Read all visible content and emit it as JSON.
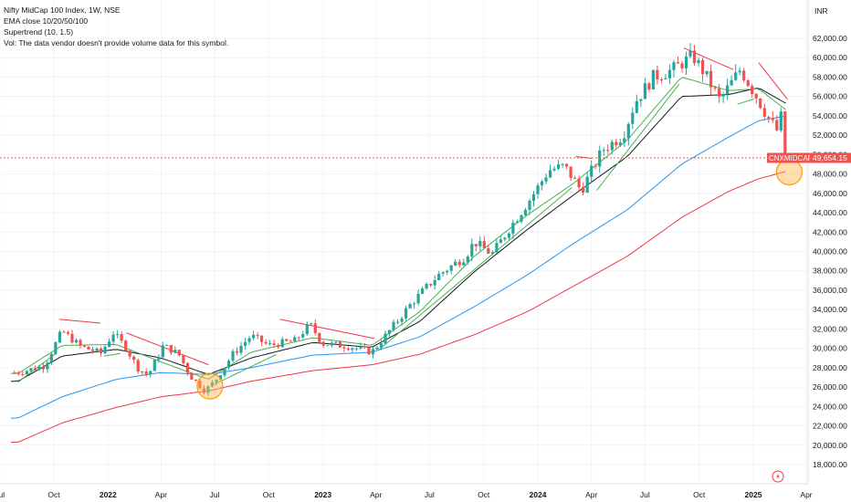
{
  "legend": {
    "title": "Nifty MidCap 100 Index, 1W, NSE",
    "ema": "EMA close 10/20/50/100",
    "supertrend": "Supertrend (10, 1.5)",
    "vol": "Vol: The data vendor doesn't provide volume data for this symbol."
  },
  "currency": "INR",
  "price_tag": {
    "symbol": "CNXMIDCAP",
    "value": "49,654.15"
  },
  "colors": {
    "up": "#26a69a",
    "down": "#ef5350",
    "ema10": "#4caf50",
    "ema20": "#131722",
    "ema50": "#2196f3",
    "ema100": "#f23645",
    "supertrend_down": "#f23645",
    "supertrend_up": "#4caf50",
    "highlight": "#ffb74d",
    "grid": "#f0f3fa"
  },
  "icons": {
    "tv_logo": "lightning-icon"
  },
  "chart_data": {
    "type": "candlestick",
    "ylim": [
      17000,
      63500
    ],
    "yticks": [
      18000,
      20000,
      22000,
      24000,
      26000,
      28000,
      30000,
      32000,
      34000,
      36000,
      38000,
      40000,
      42000,
      44000,
      46000,
      48000,
      50000,
      52000,
      54000,
      56000,
      58000,
      60000,
      62000
    ],
    "ytick_labels": [
      "18,000.00",
      "20,000.00",
      "22,000.00",
      "24,000.00",
      "26,000.00",
      "28,000.00",
      "30,000.00",
      "32,000.00",
      "34,000.00",
      "36,000.00",
      "38,000.00",
      "40,000.00",
      "42,000.00",
      "44,000.00",
      "46,000.00",
      "48,000.00",
      "50,000.00",
      "52,000.00",
      "54,000.00",
      "56,000.00",
      "58,000.00",
      "60,000.00",
      "62,000.00"
    ],
    "xticks": [
      {
        "label": "Jul",
        "date": "2021-07-01",
        "bold": false
      },
      {
        "label": "Oct",
        "date": "2021-10-01",
        "bold": false
      },
      {
        "label": "2022",
        "date": "2022-01-01",
        "bold": true
      },
      {
        "label": "Apr",
        "date": "2022-04-01",
        "bold": false
      },
      {
        "label": "Jul",
        "date": "2022-07-01",
        "bold": false
      },
      {
        "label": "Oct",
        "date": "2022-10-01",
        "bold": false
      },
      {
        "label": "2023",
        "date": "2023-01-01",
        "bold": true
      },
      {
        "label": "Apr",
        "date": "2023-04-01",
        "bold": false
      },
      {
        "label": "Jul",
        "date": "2023-07-01",
        "bold": false
      },
      {
        "label": "Oct",
        "date": "2023-10-01",
        "bold": false
      },
      {
        "label": "2024",
        "date": "2024-01-01",
        "bold": true
      },
      {
        "label": "Apr",
        "date": "2024-04-01",
        "bold": false
      },
      {
        "label": "Jul",
        "date": "2024-07-01",
        "bold": false
      },
      {
        "label": "Oct",
        "date": "2024-10-01",
        "bold": false
      },
      {
        "label": "2025",
        "date": "2025-01-01",
        "bold": true
      },
      {
        "label": "Apr",
        "date": "2025-04-01",
        "bold": false
      }
    ],
    "last_price": 49654.15,
    "close_path": [
      [
        "2021-08-01",
        27500
      ],
      [
        "2021-09-15",
        28200
      ],
      [
        "2021-10-15",
        31800
      ],
      [
        "2021-11-15",
        30200
      ],
      [
        "2021-12-20",
        29500
      ],
      [
        "2022-01-10",
        31600
      ],
      [
        "2022-01-31",
        30100
      ],
      [
        "2022-02-20",
        28000
      ],
      [
        "2022-03-10",
        27200
      ],
      [
        "2022-04-05",
        30300
      ],
      [
        "2022-05-01",
        29400
      ],
      [
        "2022-05-20",
        27200
      ],
      [
        "2022-06-15",
        25600
      ],
      [
        "2022-07-01",
        26600
      ],
      [
        "2022-08-01",
        29400
      ],
      [
        "2022-09-01",
        31300
      ],
      [
        "2022-10-01",
        30300
      ],
      [
        "2022-11-15",
        30800
      ],
      [
        "2022-12-10",
        32500
      ],
      [
        "2022-12-31",
        30500
      ],
      [
        "2023-02-15",
        30200
      ],
      [
        "2023-03-25",
        29600
      ],
      [
        "2023-04-20",
        31500
      ],
      [
        "2023-06-01",
        34700
      ],
      [
        "2023-07-15",
        37500
      ],
      [
        "2023-08-31",
        39500
      ],
      [
        "2023-09-15",
        41000
      ],
      [
        "2023-10-15",
        39700
      ],
      [
        "2023-11-15",
        42500
      ],
      [
        "2023-12-20",
        45500
      ],
      [
        "2024-01-20",
        48400
      ],
      [
        "2024-02-15",
        48800
      ],
      [
        "2024-03-15",
        46300
      ],
      [
        "2024-04-20",
        50500
      ],
      [
        "2024-05-25",
        52000
      ],
      [
        "2024-06-15",
        55500
      ],
      [
        "2024-07-15",
        58000
      ],
      [
        "2024-08-15",
        58700
      ],
      [
        "2024-09-20",
        60200
      ],
      [
        "2024-10-10",
        58400
      ],
      [
        "2024-11-05",
        55600
      ],
      [
        "2024-12-10",
        58800
      ],
      [
        "2025-01-10",
        55600
      ],
      [
        "2025-01-25",
        53900
      ],
      [
        "2025-02-10",
        52500
      ],
      [
        "2025-02-18",
        54100
      ],
      [
        "2025-02-28",
        49654
      ]
    ],
    "ema_anchors": {
      "ema10": [
        [
          "2021-08-01",
          27400
        ],
        [
          "2021-10-15",
          30300
        ],
        [
          "2022-01-15",
          30400
        ],
        [
          "2022-04-01",
          28600
        ],
        [
          "2022-06-20",
          26800
        ],
        [
          "2022-09-01",
          29600
        ],
        [
          "2022-12-15",
          31100
        ],
        [
          "2023-03-25",
          30300
        ],
        [
          "2023-06-15",
          33800
        ],
        [
          "2023-09-15",
          39500
        ],
        [
          "2023-12-15",
          43800
        ],
        [
          "2024-03-01",
          47000
        ],
        [
          "2024-06-01",
          51500
        ],
        [
          "2024-09-01",
          58000
        ],
        [
          "2024-11-20",
          56600
        ],
        [
          "2025-01-10",
          56800
        ],
        [
          "2025-02-28",
          54500
        ]
      ],
      "ema20": [
        [
          "2021-08-01",
          26600
        ],
        [
          "2021-10-15",
          29200
        ],
        [
          "2022-01-15",
          29900
        ],
        [
          "2022-04-01",
          29000
        ],
        [
          "2022-06-20",
          27300
        ],
        [
          "2022-09-01",
          29000
        ],
        [
          "2022-12-15",
          30600
        ],
        [
          "2023-03-25",
          30100
        ],
        [
          "2023-06-15",
          32800
        ],
        [
          "2023-09-15",
          37900
        ],
        [
          "2023-12-15",
          42300
        ],
        [
          "2024-03-01",
          45800
        ],
        [
          "2024-06-01",
          49800
        ],
        [
          "2024-09-01",
          56000
        ],
        [
          "2024-11-20",
          56200
        ],
        [
          "2025-01-10",
          56900
        ],
        [
          "2025-02-28",
          55200
        ]
      ],
      "ema50": [
        [
          "2021-08-01",
          22800
        ],
        [
          "2021-10-15",
          25000
        ],
        [
          "2022-01-15",
          26800
        ],
        [
          "2022-04-01",
          27500
        ],
        [
          "2022-06-20",
          27300
        ],
        [
          "2022-09-01",
          28000
        ],
        [
          "2022-12-15",
          29300
        ],
        [
          "2023-03-25",
          29600
        ],
        [
          "2023-06-15",
          31200
        ],
        [
          "2023-09-15",
          34300
        ],
        [
          "2023-12-15",
          37600
        ],
        [
          "2024-03-01",
          40800
        ],
        [
          "2024-06-01",
          44300
        ],
        [
          "2024-09-01",
          49000
        ],
        [
          "2024-11-20",
          51800
        ],
        [
          "2025-01-10",
          53500
        ],
        [
          "2025-02-28",
          54000
        ]
      ],
      "ema100": [
        [
          "2021-08-01",
          20300
        ],
        [
          "2021-10-15",
          22300
        ],
        [
          "2022-01-15",
          23900
        ],
        [
          "2022-04-01",
          25000
        ],
        [
          "2022-06-20",
          25600
        ],
        [
          "2022-09-01",
          26600
        ],
        [
          "2022-12-15",
          27700
        ],
        [
          "2023-03-25",
          28300
        ],
        [
          "2023-06-15",
          29400
        ],
        [
          "2023-09-15",
          31400
        ],
        [
          "2023-12-15",
          33800
        ],
        [
          "2024-03-01",
          36400
        ],
        [
          "2024-06-01",
          39500
        ],
        [
          "2024-09-01",
          43500
        ],
        [
          "2024-11-20",
          46200
        ],
        [
          "2025-01-10",
          47500
        ],
        [
          "2025-02-28",
          48300
        ]
      ]
    },
    "supertrend": [
      {
        "from": "2021-08-01",
        "to": "2021-10-05",
        "trend": "up",
        "values": [
          26500,
          29500
        ]
      },
      {
        "from": "2021-10-10",
        "to": "2021-12-20",
        "trend": "down",
        "values": [
          33000,
          32600
        ]
      },
      {
        "from": "2021-12-25",
        "to": "2022-01-25",
        "trend": "up",
        "values": [
          29200,
          29500
        ]
      },
      {
        "from": "2022-02-01",
        "to": "2022-06-25",
        "trend": "down",
        "values": [
          31600,
          28200
        ]
      },
      {
        "from": "2022-07-01",
        "to": "2022-10-15",
        "trend": "up",
        "values": [
          26300,
          29400
        ]
      },
      {
        "from": "2022-10-20",
        "to": "2023-03-31",
        "trend": "down",
        "values": [
          33000,
          31000
        ]
      },
      {
        "from": "2023-04-05",
        "to": "2024-02-28",
        "trend": "up",
        "values": [
          29800,
          46600
        ]
      },
      {
        "from": "2024-03-05",
        "to": "2024-04-05",
        "trend": "down",
        "values": [
          49800,
          49600
        ]
      },
      {
        "from": "2024-04-10",
        "to": "2024-08-31",
        "trend": "up",
        "values": [
          46300,
          57500
        ]
      },
      {
        "from": "2024-09-05",
        "to": "2024-12-01",
        "trend": "down",
        "values": [
          61000,
          58700
        ]
      },
      {
        "from": "2024-12-05",
        "to": "2025-01-05",
        "trend": "up",
        "values": [
          55200,
          55800
        ]
      },
      {
        "from": "2025-01-10",
        "to": "2025-02-28",
        "trend": "down",
        "values": [
          59500,
          55700
        ]
      }
    ],
    "highlights": [
      {
        "date": "2022-06-20",
        "value": 26100
      },
      {
        "date": "2025-02-28",
        "value": 48200
      }
    ]
  }
}
